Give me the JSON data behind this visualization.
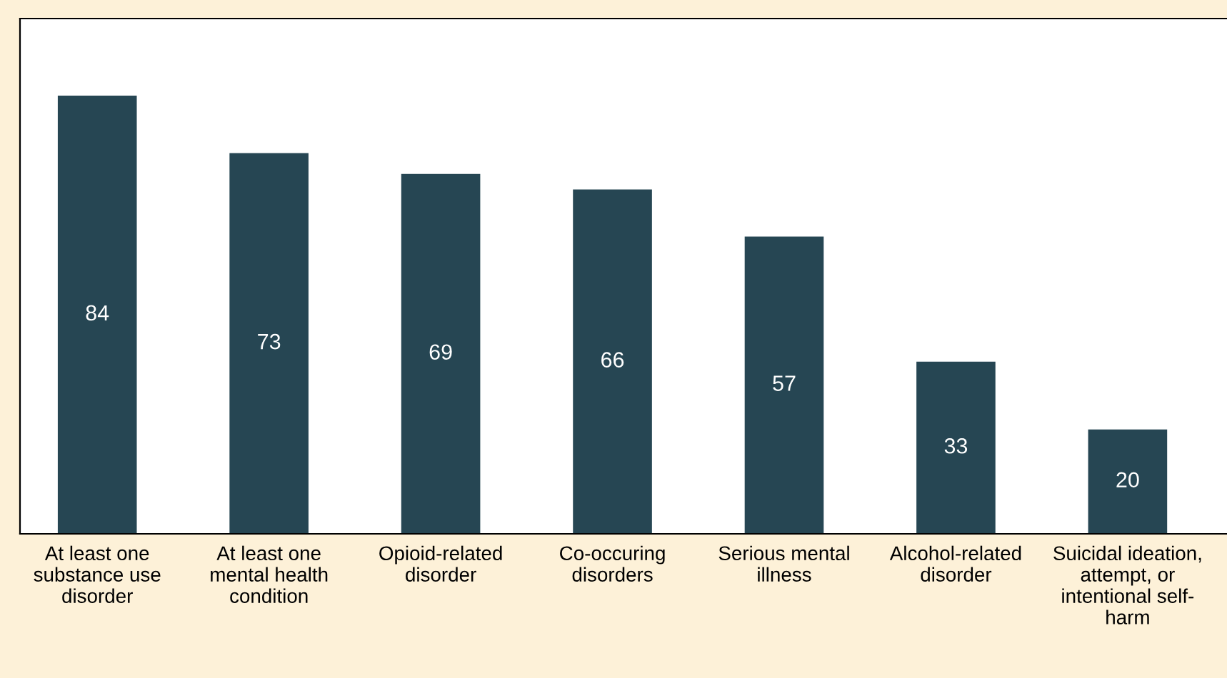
{
  "chart_data": {
    "type": "bar",
    "categories": [
      "At least one\nsubstance use\ndisorder",
      "At least one\nmental health\ncondition",
      "Opioid-related\ndisorder",
      "Co-occuring\ndisorders",
      "Serious mental\nillness",
      "Alcohol-related\ndisorder",
      "Suicidal ideation,\nattempt, or\nintentional self-\nharm"
    ],
    "values": [
      84,
      73,
      69,
      66,
      57,
      33,
      20
    ],
    "color": "#264653",
    "data_labels": true,
    "grid": false,
    "legend": false
  }
}
